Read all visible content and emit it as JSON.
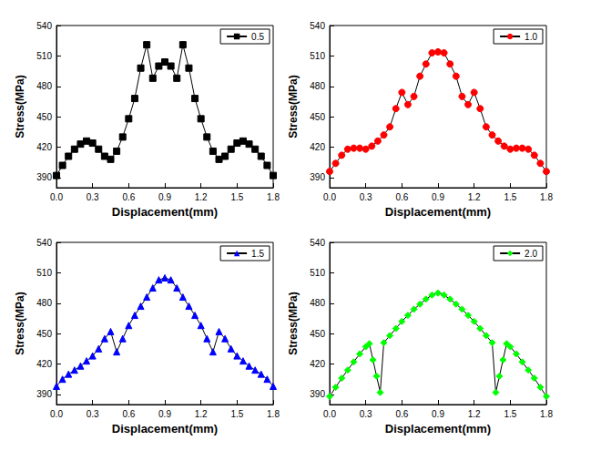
{
  "chart_data": [
    {
      "type": "line",
      "x_label": "Displacement(mm)",
      "y_label": "Stress(MPa)",
      "xlim": [
        0,
        1.8
      ],
      "ylim": [
        380,
        540
      ],
      "xticks": [
        {
          "value": 0,
          "label": "0.0"
        },
        0.3,
        0.6,
        0.9,
        1.2,
        1.5,
        1.8
      ],
      "yticks": [
        390,
        420,
        450,
        480,
        510,
        540
      ],
      "legend": "top-right",
      "x": [
        0,
        0.05,
        0.1,
        0.15,
        0.2,
        0.25,
        0.3,
        0.35,
        0.4,
        0.45,
        0.5,
        0.55,
        0.6,
        0.65,
        0.7,
        0.75,
        0.8,
        0.85,
        0.9,
        0.95,
        1.0,
        1.05,
        1.1,
        1.15,
        1.2,
        1.25,
        1.3,
        1.35,
        1.4,
        1.45,
        1.5,
        1.55,
        1.6,
        1.65,
        1.7,
        1.75,
        1.8
      ],
      "series": [
        {
          "name": "0.5",
          "color": "#000000",
          "marker": "square",
          "values": [
            392,
            402,
            411,
            418,
            423,
            426,
            424,
            418,
            411,
            408,
            416,
            430,
            448,
            468,
            498,
            521,
            488,
            500,
            504,
            500,
            488,
            521,
            498,
            468,
            448,
            430,
            416,
            408,
            411,
            418,
            424,
            426,
            423,
            418,
            411,
            402,
            392
          ]
        }
      ]
    },
    {
      "type": "line",
      "x_label": "Displacement(mm)",
      "y_label": "Stress(MPa)",
      "xlim": [
        0,
        1.8
      ],
      "ylim": [
        380,
        540
      ],
      "xticks": [
        {
          "value": 0,
          "label": "0.0"
        },
        0.3,
        0.6,
        0.9,
        1.2,
        1.5,
        1.8
      ],
      "yticks": [
        390,
        420,
        450,
        480,
        510,
        540
      ],
      "legend": "top-right",
      "x": [
        0,
        0.05,
        0.1,
        0.15,
        0.2,
        0.25,
        0.3,
        0.35,
        0.4,
        0.45,
        0.5,
        0.55,
        0.6,
        0.65,
        0.7,
        0.75,
        0.8,
        0.85,
        0.9,
        0.95,
        1.0,
        1.05,
        1.1,
        1.15,
        1.2,
        1.25,
        1.3,
        1.35,
        1.4,
        1.45,
        1.5,
        1.55,
        1.6,
        1.65,
        1.7,
        1.75,
        1.8
      ],
      "series": [
        {
          "name": "1.0",
          "color": "#ff0000",
          "marker": "circle",
          "values": [
            396,
            404,
            412,
            418,
            419,
            419,
            418,
            421,
            426,
            432,
            440,
            458,
            474,
            462,
            470,
            490,
            502,
            513,
            514,
            513,
            502,
            490,
            470,
            462,
            474,
            458,
            440,
            432,
            426,
            421,
            418,
            419,
            419,
            418,
            412,
            404,
            396
          ]
        }
      ]
    },
    {
      "type": "line",
      "x_label": "Displacement(mm)",
      "y_label": "Stress(MPa)",
      "xlim": [
        0,
        1.8
      ],
      "ylim": [
        380,
        540
      ],
      "xticks": [
        {
          "value": 0,
          "label": "0.0"
        },
        0.3,
        0.6,
        0.9,
        1.2,
        1.5,
        1.8
      ],
      "yticks": [
        390,
        420,
        450,
        480,
        510,
        540
      ],
      "legend": "top-right",
      "x": [
        0,
        0.05,
        0.1,
        0.15,
        0.2,
        0.25,
        0.3,
        0.35,
        0.4,
        0.45,
        0.5,
        0.55,
        0.6,
        0.65,
        0.7,
        0.75,
        0.8,
        0.85,
        0.9,
        0.95,
        1.0,
        1.05,
        1.1,
        1.15,
        1.2,
        1.25,
        1.3,
        1.35,
        1.4,
        1.45,
        1.5,
        1.55,
        1.6,
        1.65,
        1.7,
        1.75,
        1.8
      ],
      "series": [
        {
          "name": "1.5",
          "color": "#0000ff",
          "marker": "triangle",
          "values": [
            398,
            405,
            410,
            414,
            418,
            423,
            428,
            435,
            445,
            452,
            432,
            445,
            458,
            468,
            477,
            486,
            495,
            503,
            505,
            503,
            495,
            486,
            477,
            468,
            458,
            445,
            432,
            452,
            445,
            435,
            428,
            423,
            418,
            414,
            410,
            405,
            398
          ]
        }
      ]
    },
    {
      "type": "line",
      "x_label": "Displacement(mm)",
      "y_label": "Stress(MPa)",
      "xlim": [
        0,
        1.8
      ],
      "ylim": [
        380,
        540
      ],
      "xticks": [
        {
          "value": 0,
          "label": "0.0"
        },
        0.3,
        0.6,
        0.9,
        1.2,
        1.5,
        1.8
      ],
      "yticks": [
        390,
        420,
        450,
        480,
        510,
        540
      ],
      "legend": "top-right",
      "x": [
        0,
        0.05,
        0.1,
        0.15,
        0.2,
        0.25,
        0.3,
        0.33,
        0.36,
        0.39,
        0.42,
        0.45,
        0.5,
        0.55,
        0.6,
        0.65,
        0.7,
        0.75,
        0.8,
        0.85,
        0.9,
        0.95,
        1.0,
        1.05,
        1.1,
        1.15,
        1.2,
        1.25,
        1.3,
        1.35,
        1.38,
        1.41,
        1.44,
        1.47,
        1.5,
        1.55,
        1.6,
        1.65,
        1.7,
        1.75,
        1.8
      ],
      "series": [
        {
          "name": "2.0",
          "color": "#00ff00",
          "marker": "diamond",
          "values": [
            388,
            397,
            406,
            414,
            422,
            430,
            437,
            440,
            424,
            408,
            392,
            441,
            448,
            455,
            462,
            468,
            474,
            479,
            484,
            488,
            490,
            488,
            484,
            479,
            474,
            468,
            462,
            455,
            448,
            441,
            392,
            408,
            424,
            440,
            437,
            430,
            422,
            414,
            406,
            397,
            388
          ]
        }
      ]
    }
  ]
}
